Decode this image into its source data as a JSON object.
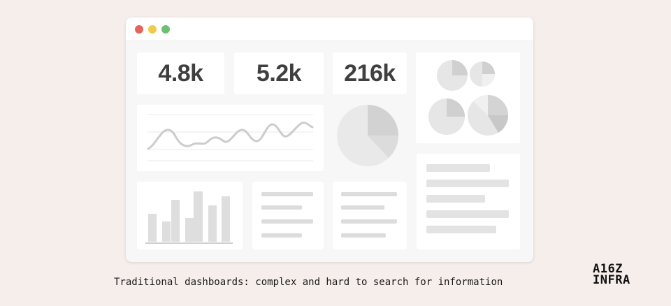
{
  "window": {
    "controls": [
      "close",
      "minimize",
      "maximize"
    ],
    "colors": {
      "close": "#e8635a",
      "minimize": "#f2c94c",
      "maximize": "#6fbf73"
    }
  },
  "stats": [
    {
      "value": "4.8k"
    },
    {
      "value": "5.2k"
    },
    {
      "value": "216k"
    }
  ],
  "caption": "Traditional dashboards: complex and hard to search for information",
  "logo": {
    "line1": "A16Z",
    "line2": "INFRA"
  }
}
